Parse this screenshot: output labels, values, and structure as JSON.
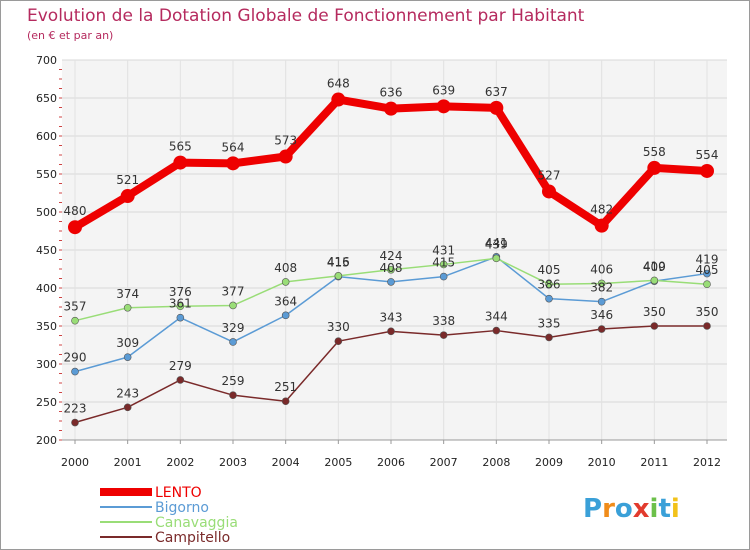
{
  "chart_data": {
    "type": "line",
    "title": "Evolution de la Dotation Globale de Fonctionnement par Habitant",
    "subtitle": "(en € et par an)",
    "x": [
      "2000",
      "2001",
      "2002",
      "2003",
      "2004",
      "2005",
      "2006",
      "2007",
      "2008",
      "2009",
      "2010",
      "2011",
      "2012"
    ],
    "ylim": [
      200,
      700
    ],
    "yticks": [
      "200",
      "250",
      "300",
      "350",
      "400",
      "450",
      "500",
      "550",
      "600",
      "650",
      "700"
    ],
    "grid": true,
    "legend_position": "bottom-left",
    "series": [
      {
        "name": "LENTO",
        "color": "#ee0000",
        "values": [
          480,
          521,
          565,
          564,
          573,
          648,
          636,
          639,
          637,
          527,
          482,
          558,
          554
        ],
        "labels": [
          "480",
          "521",
          "565",
          "564",
          "573",
          "648",
          "636",
          "639",
          "637",
          "527",
          "482",
          "558",
          "554"
        ]
      },
      {
        "name": "Bigorno",
        "color": "#5b9bd5",
        "values": [
          290,
          309,
          361,
          329,
          364,
          415,
          408,
          415,
          441,
          386,
          382,
          409,
          419
        ],
        "labels": [
          "290",
          "309",
          "361",
          "329",
          "364",
          "415",
          "408",
          "415",
          "441",
          "386",
          "382",
          "409",
          "419"
        ]
      },
      {
        "name": "Canavaggia",
        "color": "#99dd77",
        "values": [
          357,
          374,
          376,
          377,
          408,
          416,
          424,
          431,
          439,
          405,
          406,
          410,
          405
        ],
        "labels": [
          "357",
          "374",
          "376",
          "377",
          "408",
          "416",
          "424",
          "431",
          "439",
          "405",
          "406",
          "410",
          "405"
        ]
      },
      {
        "name": "Campitello",
        "color": "#7a2a2a",
        "values": [
          223,
          243,
          279,
          259,
          251,
          330,
          343,
          338,
          344,
          335,
          346,
          350,
          350
        ],
        "labels": [
          "223",
          "243",
          "279",
          "259",
          "251",
          "330",
          "343",
          "338",
          "344",
          "335",
          "346",
          "350",
          "350"
        ]
      }
    ]
  },
  "logo": {
    "text": "Proxiti",
    "colors": [
      "#3aa0d8",
      "#f08c1a",
      "#3aa0d8",
      "#e23b2e",
      "#6cc04a",
      "#3aa0d8",
      "#f2c21a"
    ]
  }
}
